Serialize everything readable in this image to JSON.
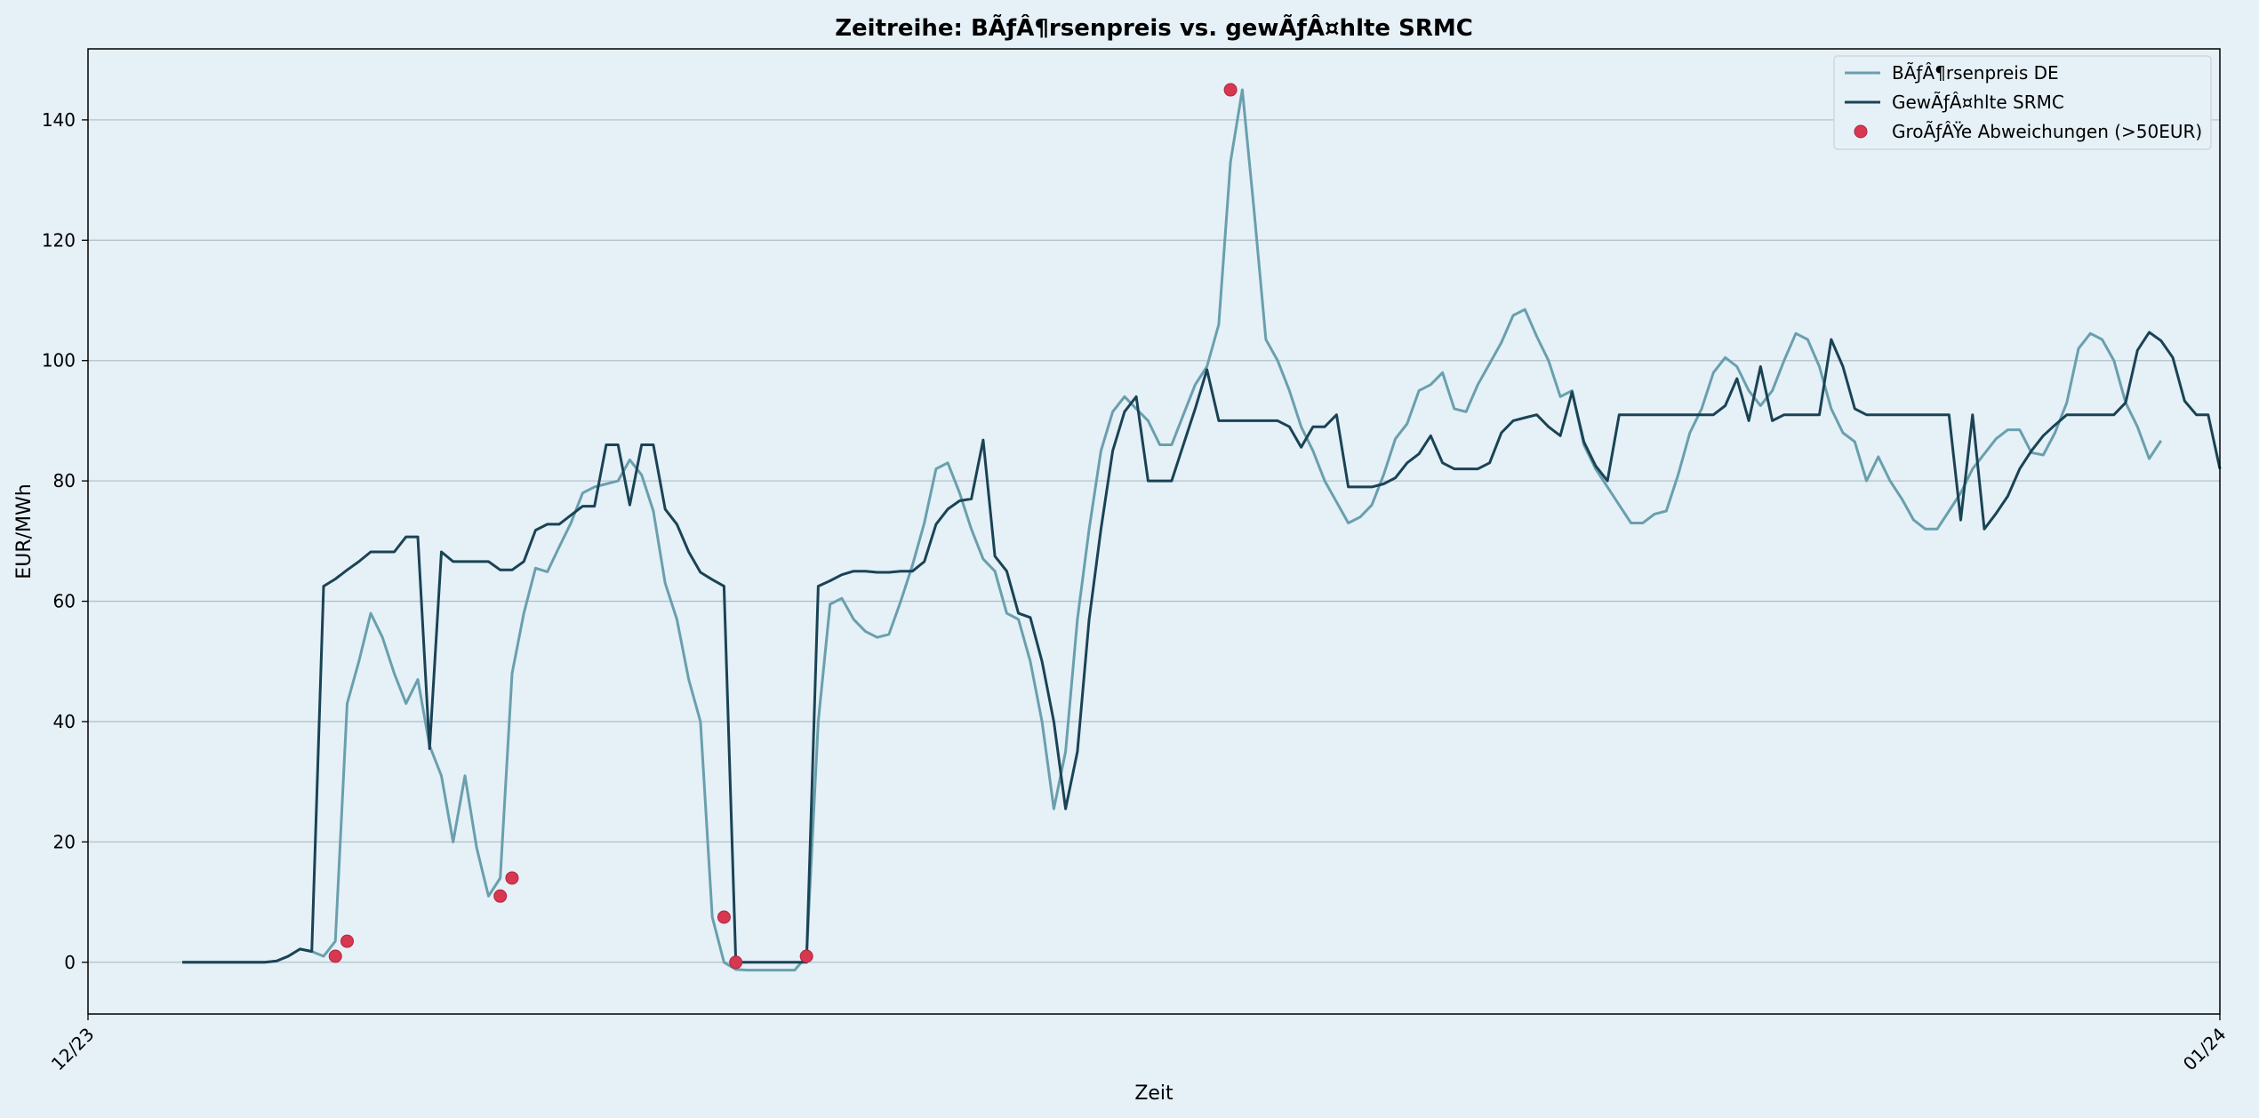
{
  "chart_data": {
    "type": "line",
    "title": "Zeitreihe: BÃƒÂ¶rsenpreis vs. gewÃƒÂ¤hlte SRMC",
    "xlabel": "Zeit",
    "ylabel": "EUR/MWh",
    "x_tick_labels": [
      "12/23",
      "01/24"
    ],
    "ylim": [
      -8.6,
      151.8
    ],
    "yticks": [
      0,
      20,
      40,
      60,
      80,
      100,
      120,
      140
    ],
    "grid": "horizontal",
    "legend_position": "top-right",
    "x_index_range": [
      -8,
      173
    ],
    "series": [
      {
        "name": "BÃƒÂ¶rsenpreis DE",
        "color": "#6a9fad",
        "values": [
          0,
          0,
          0,
          0,
          0,
          0,
          0,
          0,
          0.2,
          1,
          2.2,
          1.8,
          1,
          3.5,
          43,
          50,
          58,
          54,
          48,
          43,
          47,
          36,
          31,
          20,
          31,
          19,
          11,
          14,
          48,
          58,
          65.5,
          64.9,
          69,
          73,
          78,
          79,
          79.5,
          80,
          83.5,
          81,
          75,
          63,
          57,
          47,
          40,
          7.5,
          0,
          -1.2,
          -1.3,
          -1.3,
          -1.3,
          -1.3,
          -1.3,
          1,
          40,
          59.5,
          60.5,
          57,
          55,
          54,
          54.5,
          60,
          66,
          73,
          82,
          83,
          78,
          72,
          67,
          65,
          58,
          57,
          50,
          40,
          25.5,
          35,
          57,
          72,
          85,
          91.5,
          94,
          92,
          90,
          86,
          86,
          91,
          96,
          99,
          106,
          133,
          145,
          125,
          103.5,
          100,
          95,
          89,
          85,
          80,
          76.5,
          73,
          74,
          76,
          81,
          87,
          89.5,
          95,
          96,
          98,
          92,
          91.5,
          96,
          99.5,
          103,
          107.5,
          108.5,
          104,
          100,
          94,
          95,
          86,
          82,
          79,
          76,
          73,
          73,
          74.5,
          75,
          81,
          88,
          92,
          98,
          100.5,
          99,
          95,
          92.5,
          95,
          100,
          104.5,
          103.5,
          99,
          92,
          88,
          86.5,
          80,
          84,
          80,
          77,
          73.5,
          72,
          72,
          75,
          78,
          82,
          84.5,
          87,
          88.5,
          88.5,
          84.7,
          84.3,
          88,
          93,
          102,
          104.5,
          103.5,
          100,
          93,
          89,
          83.7,
          86.7
        ]
      },
      {
        "name": "GewÃƒÂ¤hlte SRMC",
        "color": "#1a4355",
        "values": [
          0,
          0,
          0,
          0,
          0,
          0,
          0,
          0,
          0.2,
          1,
          2.2,
          1.8,
          62.5,
          63.7,
          65.2,
          66.6,
          68.2,
          68.2,
          68.2,
          70.7,
          70.7,
          35.5,
          68.2,
          66.6,
          66.6,
          66.6,
          66.6,
          65.2,
          65.2,
          66.6,
          71.8,
          72.8,
          72.8,
          74.3,
          75.8,
          75.8,
          86,
          86,
          76,
          86,
          86,
          75.3,
          72.8,
          68.2,
          64.8,
          63.6,
          62.5,
          0,
          0,
          0,
          0,
          0,
          0,
          0,
          62.5,
          63.4,
          64.4,
          65,
          65,
          64.8,
          64.8,
          65,
          65,
          66.6,
          72.8,
          75.3,
          76.7,
          77,
          86.8,
          67.5,
          65,
          58,
          57.3,
          50,
          40,
          25.5,
          35,
          57,
          72,
          85,
          91.5,
          94,
          80,
          80,
          80,
          86,
          92,
          98.5,
          90,
          90,
          90,
          90,
          90,
          90,
          89,
          85.6,
          89,
          89,
          91,
          79,
          79,
          79,
          79.5,
          80.5,
          83,
          84.5,
          87.5,
          83,
          82,
          82,
          82,
          83,
          88,
          90,
          90.5,
          91,
          89,
          87.5,
          94.8,
          86.5,
          82.5,
          80,
          91,
          91,
          91,
          91,
          91,
          91,
          91,
          91,
          91,
          92.5,
          97,
          90,
          99,
          90,
          91,
          91,
          91,
          91,
          103.5,
          99,
          92,
          91,
          91,
          91,
          91,
          91,
          91,
          91,
          91,
          73.5,
          91,
          72,
          74.6,
          77.5,
          82,
          85,
          87.5,
          89.3,
          91,
          91,
          91,
          91,
          91,
          93,
          101.7,
          104.7,
          103.3,
          100.5,
          93.3,
          91,
          91,
          82
        ]
      }
    ],
    "highlight": {
      "name": "GroÃƒÂŸe Abweichungen (>50EUR)",
      "color": "#d7374f",
      "points": [
        [
          13,
          1
        ],
        [
          14,
          3.5
        ],
        [
          27,
          11
        ],
        [
          28,
          14
        ],
        [
          46,
          7.5
        ],
        [
          47,
          0
        ],
        [
          53,
          1
        ],
        [
          89,
          145
        ]
      ]
    }
  }
}
